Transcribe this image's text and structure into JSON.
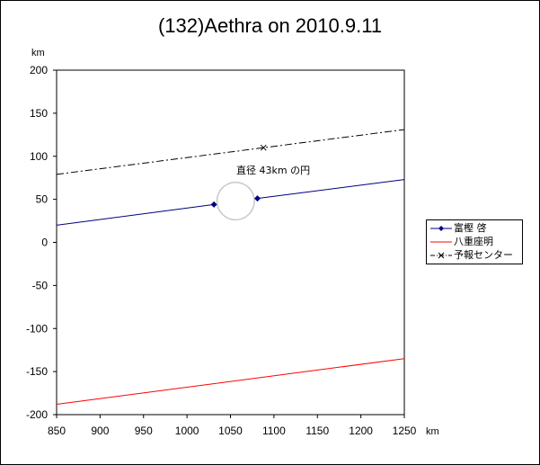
{
  "chart_data": {
    "type": "line",
    "title": "(132)Aethra on 2010.9.11",
    "xlabel": "km",
    "ylabel": "km",
    "xlim": [
      850,
      1250
    ],
    "ylim": [
      -200,
      200
    ],
    "xticks": [
      850,
      900,
      950,
      1000,
      1050,
      1100,
      1150,
      1200,
      1250
    ],
    "yticks": [
      200,
      150,
      100,
      50,
      0,
      -50,
      -100,
      -150,
      -200
    ],
    "series": [
      {
        "name": "富樫 啓",
        "color": "#000080",
        "style": "solid",
        "marker": "diamond",
        "segments": [
          [
            [
              850,
              20
            ],
            [
              1031,
              44
            ]
          ],
          [
            [
              1081,
              51
            ],
            [
              1250,
              73
            ]
          ]
        ],
        "markers": [
          [
            1031,
            44
          ],
          [
            1081,
            51
          ]
        ]
      },
      {
        "name": "八重座明",
        "color": "#ff0000",
        "style": "solid",
        "marker": "none",
        "segments": [
          [
            [
              850,
              -188
            ],
            [
              1250,
              -135
            ]
          ]
        ],
        "markers": []
      },
      {
        "name": "予報センター",
        "color": "#000000",
        "style": "dashdot",
        "marker": "x",
        "segments": [
          [
            [
              850,
              79
            ],
            [
              1250,
              131
            ]
          ]
        ],
        "markers": [
          [
            1088,
            110
          ]
        ]
      }
    ],
    "circle": {
      "center_x": 1056,
      "center_y": 48,
      "diameter_km": 43,
      "color": "#c8c8c8"
    },
    "annotation": "直径 43km の円",
    "legend_position": "right"
  }
}
